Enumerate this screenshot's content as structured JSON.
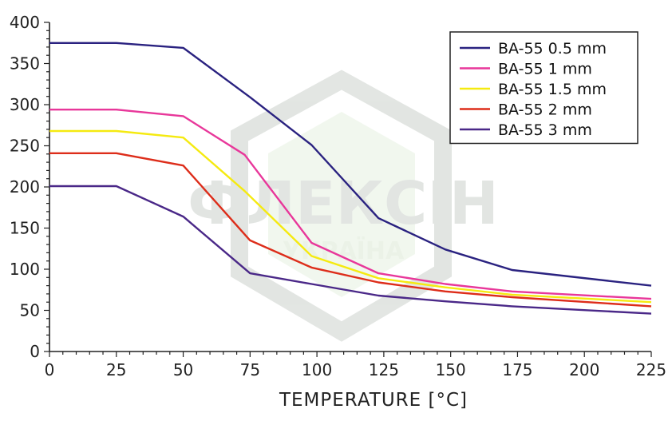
{
  "chart_data": {
    "type": "line",
    "title": "",
    "xlabel": "TEMPERATURE [°C]",
    "ylabel": "",
    "xlim": [
      0,
      225
    ],
    "ylim": [
      0,
      400
    ],
    "xticks": [
      0,
      25,
      50,
      75,
      100,
      125,
      150,
      175,
      200,
      225
    ],
    "yticks": [
      0,
      50,
      100,
      150,
      200,
      250,
      300,
      350,
      400
    ],
    "legend_position": "top-right",
    "grid": false,
    "series": [
      {
        "name": "BA-55 0.5 mm",
        "color": "#2a2280",
        "x": [
          0,
          25,
          50,
          75,
          98,
          123,
          148,
          173,
          225
        ],
        "y": [
          375,
          375,
          369,
          309,
          251,
          162,
          124,
          99,
          80
        ]
      },
      {
        "name": "BA-55 1 mm",
        "color": "#e8379a",
        "x": [
          0,
          25,
          50,
          73,
          98,
          123,
          148,
          173,
          225
        ],
        "y": [
          294,
          294,
          286,
          239,
          132,
          95,
          82,
          73,
          64
        ]
      },
      {
        "name": "BA-55 1.5 mm",
        "color": "#f5ea10",
        "x": [
          0,
          25,
          50,
          73,
          98,
          123,
          148,
          173,
          225
        ],
        "y": [
          268,
          268,
          260,
          195,
          116,
          89,
          78,
          69,
          60
        ]
      },
      {
        "name": "BA-55 2 mm",
        "color": "#dd2d1a",
        "x": [
          0,
          25,
          50,
          75,
          98,
          123,
          148,
          173,
          225
        ],
        "y": [
          241,
          241,
          226,
          135,
          102,
          84,
          73,
          66,
          55
        ]
      },
      {
        "name": "BA-55 3 mm",
        "color": "#4a2888",
        "x": [
          0,
          25,
          50,
          75,
          98,
          123,
          148,
          173,
          225
        ],
        "y": [
          201,
          201,
          164,
          95,
          82,
          68,
          61,
          55,
          46
        ]
      }
    ]
  },
  "watermark": {
    "line1": "ФЛЕКСІН",
    "line2": "УКРАЇНА",
    "color": "#b8c8b0"
  }
}
